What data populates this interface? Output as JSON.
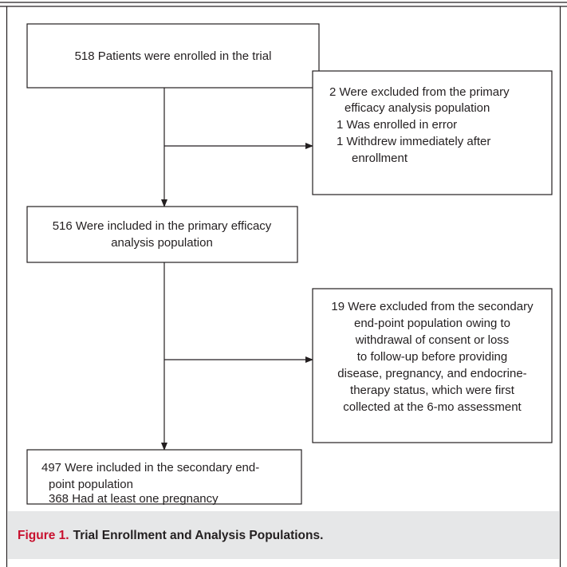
{
  "nodes": [
    {
      "lines": [
        "518 Patients were enrolled in the trial"
      ]
    },
    {
      "lines": [
        "2 Were excluded from the primary",
        "efficacy analysis population",
        "1 Was enrolled in error",
        "1 Withdrew immediately after",
        "enrollment"
      ]
    },
    {
      "lines": [
        "516 Were included in the primary efficacy",
        "analysis population"
      ]
    },
    {
      "lines": [
        "19 Were excluded from the secondary",
        "end-point population owing to",
        "withdrawal of consent or loss",
        "to follow-up before providing",
        "disease, pregnancy, and endocrine-",
        "therapy status, which were first",
        "collected at the 6-mo assessment"
      ]
    },
    {
      "lines": [
        "497 Were included in the secondary end-",
        "point population",
        "368 Had at least one pregnancy"
      ]
    }
  ],
  "caption": {
    "label": "Figure 1.",
    "title": "Trial Enrollment and Analysis Populations."
  }
}
